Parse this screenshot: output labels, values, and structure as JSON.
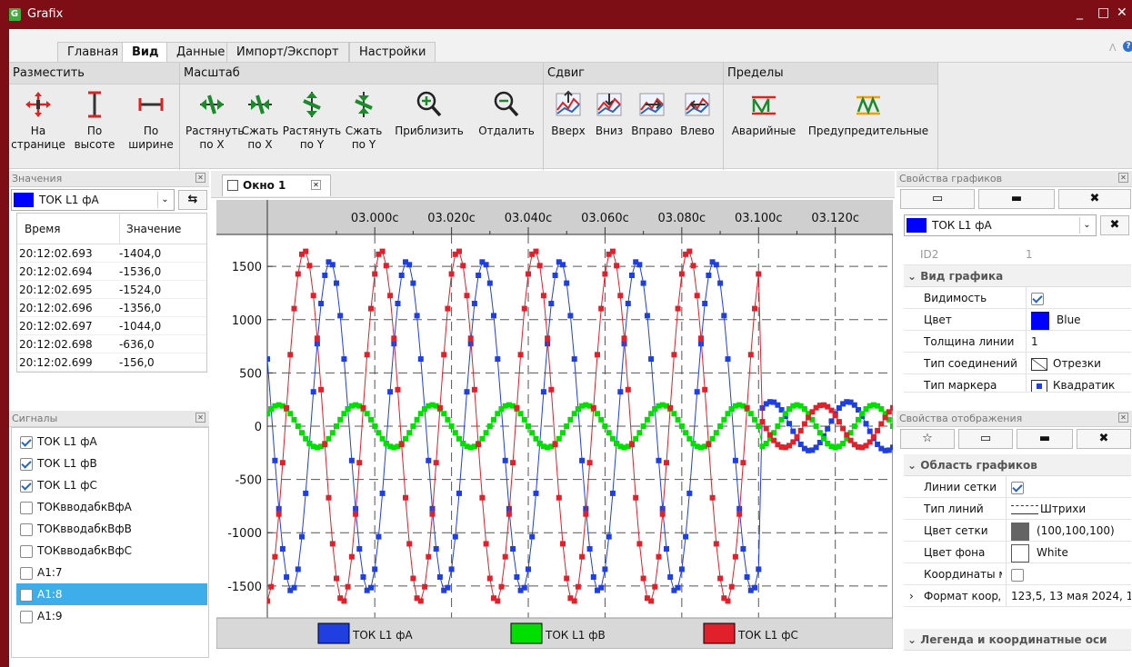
{
  "window": {
    "title": "Grafix",
    "app_icon": "G"
  },
  "menu_tabs": [
    "Главная",
    "Вид",
    "Данные",
    "Импорт/Экспорт",
    "Настройки"
  ],
  "ribbon": {
    "place": {
      "title": "Разместить",
      "buttons": [
        [
          "На",
          "странице"
        ],
        [
          "По",
          "высоте"
        ],
        [
          "По",
          "ширине"
        ]
      ]
    },
    "scale": {
      "title": "Масштаб",
      "buttons": [
        [
          "Растянуть",
          "по X"
        ],
        [
          "Сжать",
          "по X"
        ],
        [
          "Растянуть",
          "по Y"
        ],
        [
          "Сжать",
          "по Y"
        ],
        [
          "Приблизить",
          ""
        ],
        [
          "Отдалить",
          ""
        ]
      ]
    },
    "shift": {
      "title": "Сдвиг",
      "buttons": [
        "Вверх",
        "Вниз",
        "Вправо",
        "Влево"
      ]
    },
    "limits": {
      "title": "Пределы",
      "buttons": [
        "Аварийные",
        "Предупредительные"
      ]
    }
  },
  "values_panel": {
    "title": "Значения",
    "selected": "ТОК L1 фА",
    "color": "#0000ff",
    "headers": [
      "Время",
      "Значение"
    ],
    "rows": [
      [
        "20:12:02.693",
        "-1404,0"
      ],
      [
        "20:12:02.694",
        "-1536,0"
      ],
      [
        "20:12:02.695",
        "-1524,0"
      ],
      [
        "20:12:02.696",
        "-1356,0"
      ],
      [
        "20:12:02.697",
        "-1044,0"
      ],
      [
        "20:12:02.698",
        "-636,0"
      ],
      [
        "20:12:02.699",
        "-156,0"
      ]
    ]
  },
  "signals_panel": {
    "title": "Сигналы",
    "items": [
      {
        "label": "ТОК L1 фА",
        "checked": true
      },
      {
        "label": "ТОК L1 фВ",
        "checked": true
      },
      {
        "label": "ТОК L1 фС",
        "checked": true
      },
      {
        "label": "ТОКвводабкВфА",
        "checked": false
      },
      {
        "label": "ТОКвводабкВфВ",
        "checked": false
      },
      {
        "label": "ТОКвводабкВфС",
        "checked": false
      },
      {
        "label": "А1:7",
        "checked": false
      },
      {
        "label": "А1:8",
        "checked": false,
        "selected": true
      },
      {
        "label": "А1:9",
        "checked": false
      }
    ]
  },
  "chart_window": {
    "tab": "Окно 1"
  },
  "chart_data": {
    "type": "line",
    "x_ticks": [
      "03.000с",
      "03.020с",
      "03.040с",
      "03.060с",
      "03.080с",
      "03.100с",
      "03.120с"
    ],
    "y_ticks": [
      "1500",
      "1000",
      "500",
      "0",
      "-500",
      "-1000",
      "-1500"
    ],
    "ylim": [
      -1800,
      1800
    ],
    "xlim": [
      2.972,
      3.135
    ],
    "x_unit": "с",
    "series": [
      {
        "name": "ТОК L1 фА",
        "color": "#1f3fe0",
        "amplitude_before": 1550,
        "phase_deg": -60,
        "amplitude_after": 230
      },
      {
        "name": "ТОК L1 фВ",
        "color": "#00e000",
        "amplitude_before": 200,
        "phase_deg": 180,
        "amplitude_after": 200
      },
      {
        "name": "ТОК L1 фС",
        "color": "#e0202a",
        "amplitude_before": 1650,
        "phase_deg": 60,
        "amplitude_after": 200
      }
    ],
    "frequency_hz": 50,
    "fault_clear_time": 3.1,
    "grid": true,
    "legend": "bottom"
  },
  "plot_props": {
    "title": "Свойства графиков",
    "selected": "ТОК L1 фА",
    "color": "#0000ff",
    "id_label": "ID2",
    "id_value": "1",
    "section": "Вид графика",
    "rows": [
      [
        "Видимость",
        ""
      ],
      [
        "Цвет",
        "Blue"
      ],
      [
        "Толщина линии",
        "1"
      ],
      [
        "Тип соединений",
        "Отрезки"
      ],
      [
        "Тип маркера",
        "Квадратик"
      ]
    ]
  },
  "display_props": {
    "title": "Свойства отображения",
    "section": "Область графиков",
    "rows": [
      [
        "Линии сетки",
        ""
      ],
      [
        "Тип линий",
        "Штрихи"
      ],
      [
        "Цвет сетки",
        "(100,100,100)"
      ],
      [
        "Цвет фона",
        "White"
      ],
      [
        "Координаты м",
        ""
      ],
      [
        "Формат коорд",
        "123,5, 13 мая 2024, 1"
      ]
    ],
    "section2": "Легенда и координатные оси"
  }
}
